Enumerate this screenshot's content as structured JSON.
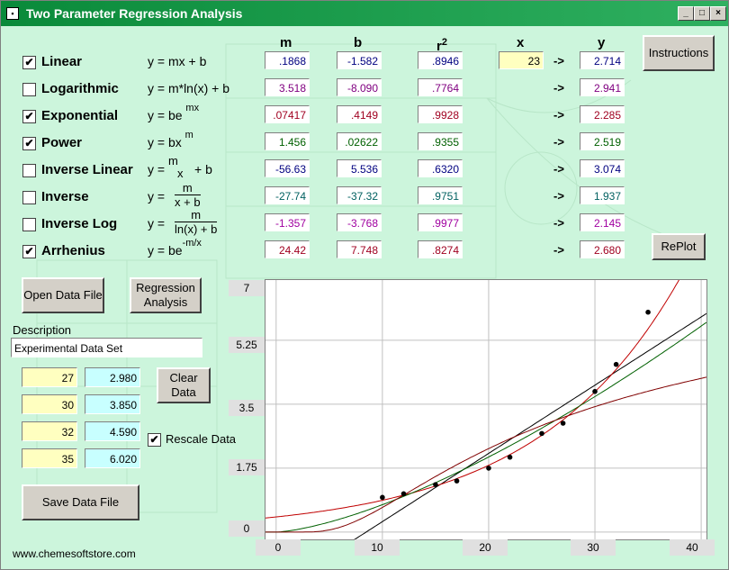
{
  "window": {
    "title": "Two Parameter Regression Analysis"
  },
  "headers": {
    "m": "m",
    "b": "b",
    "r2": "r",
    "r2_sup": "2",
    "x": "x",
    "y": "y"
  },
  "rows": [
    {
      "name": "Linear",
      "checked": true,
      "formula": "y = mx + b",
      "sup": "",
      "m": ".1868",
      "b": "-1.582",
      "r2": ".8946",
      "y": "2.714",
      "color": "#000080"
    },
    {
      "name": "Logarithmic",
      "checked": false,
      "formula": "y = m*ln(x) + b",
      "sup": "",
      "m": "3.518",
      "b": "-8.090",
      "r2": ".7764",
      "y": "2.941",
      "color": "#800080"
    },
    {
      "name": "Exponential",
      "checked": true,
      "formula": "y = be",
      "sup": "mx",
      "m": ".07417",
      "b": ".4149",
      "r2": ".9928",
      "y": "2.285",
      "color": "#a00020"
    },
    {
      "name": "Power",
      "checked": true,
      "formula": "y = bx",
      "sup": "m",
      "m": "1.456",
      "b": ".02622",
      "r2": ".9355",
      "y": "2.519",
      "color": "#006000"
    },
    {
      "name": "Inverse Linear",
      "checked": false,
      "formula": "y =",
      "sup": "",
      "m": "-56.63",
      "b": "5.536",
      "r2": ".6320",
      "y": "3.074",
      "color": "#000080"
    },
    {
      "name": "Inverse",
      "checked": false,
      "formula": "y =",
      "sup": "",
      "m": "-27.74",
      "b": "-37.32",
      "r2": ".9751",
      "y": "1.937",
      "color": "#006060"
    },
    {
      "name": "Inverse Log",
      "checked": false,
      "formula": "y =",
      "sup": "",
      "m": "-1.357",
      "b": "-3.768",
      "r2": ".9977",
      "y": "2.145",
      "color": "#a000a0"
    },
    {
      "name": "Arrhenius",
      "checked": true,
      "formula": "y = be",
      "sup": "-m/x",
      "m": "24.42",
      "b": "7.748",
      "r2": ".8274",
      "y": "2.680",
      "color": "#a00020"
    }
  ],
  "inverse_linear_frac": {
    "num": "m",
    "den": "x",
    "tail": "+ b"
  },
  "inverse_frac": {
    "num": "m",
    "den": "x + b"
  },
  "inverse_log_frac": {
    "num": "m",
    "den": "ln(x) + b"
  },
  "x_input": "23",
  "arrow": "->",
  "buttons": {
    "instructions": "Instructions",
    "replot": "RePlot",
    "open_data_file": "Open Data File",
    "regression_analysis": "Regression Analysis",
    "clear_data": "Clear Data",
    "save_data_file": "Save Data File"
  },
  "description_label": "Description",
  "description_value": "Experimental Data Set",
  "data_pairs": [
    {
      "x": "27",
      "y": "2.980"
    },
    {
      "x": "30",
      "y": "3.850"
    },
    {
      "x": "32",
      "y": "4.590"
    },
    {
      "x": "35",
      "y": "6.020"
    }
  ],
  "rescale": {
    "label": "Rescale Data",
    "checked": true
  },
  "footer": "www.chemesoftstore.com",
  "chart_data": {
    "type": "scatter",
    "y_ticks": [
      "7",
      "5.25",
      "3.5",
      "1.75",
      "0"
    ],
    "x_ticks": [
      "0",
      "10",
      "20",
      "30",
      "40"
    ],
    "xlim": [
      -1,
      40.5
    ],
    "ylim": [
      -0.2,
      6.9
    ],
    "points": [
      [
        10,
        0.95
      ],
      [
        12,
        1.05
      ],
      [
        15,
        1.3
      ],
      [
        17,
        1.4
      ],
      [
        20,
        1.75
      ],
      [
        22,
        2.05
      ],
      [
        25,
        2.7
      ],
      [
        27,
        2.98
      ],
      [
        30,
        3.85
      ],
      [
        32,
        4.59
      ],
      [
        35,
        6.02
      ]
    ],
    "series": [
      {
        "color": "#000000",
        "kind": "linear",
        "m": 0.1868,
        "b": -1.582
      },
      {
        "color": "#c00000",
        "kind": "exponential",
        "m": 0.07417,
        "b": 0.4149
      },
      {
        "color": "#006000",
        "kind": "power",
        "m": 1.456,
        "b": 0.02622
      },
      {
        "color": "#800000",
        "kind": "arrhenius",
        "m": 24.42,
        "b": 7.748
      }
    ],
    "grid": true
  }
}
